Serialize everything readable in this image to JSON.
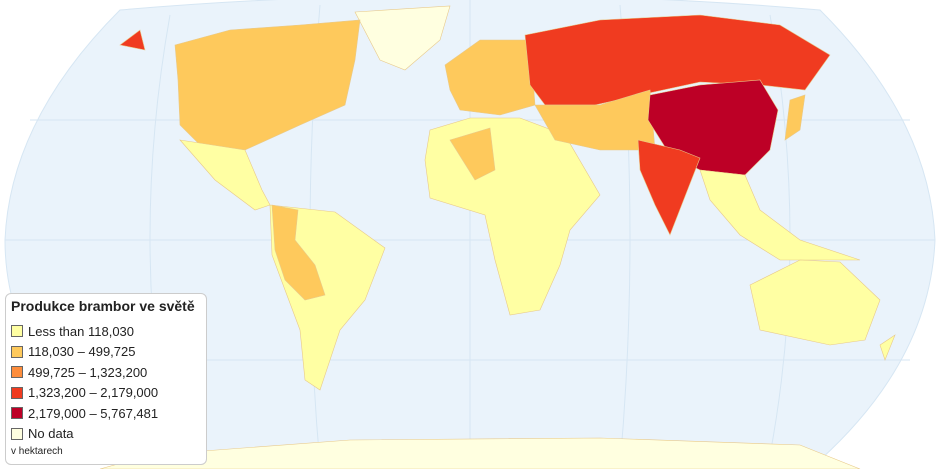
{
  "legend": {
    "title": "Produkce brambor ve světě",
    "items": [
      {
        "label": "Less than 118,030",
        "color": "#FFFFA3"
      },
      {
        "label": "118,030 – 499,725",
        "color": "#FEC95C"
      },
      {
        "label": "499,725 – 1,323,200",
        "color": "#FD8D3C"
      },
      {
        "label": "1,323,200 – 2,179,000",
        "color": "#F03B20"
      },
      {
        "label": "2,179,000 – 5,767,481",
        "color": "#BD0026"
      },
      {
        "label": "No data",
        "color": "#FFFFE0"
      }
    ],
    "unit_note": "v hektarech"
  },
  "colors": {
    "ocean": "#EAF3FB",
    "border": "#E0C080"
  }
}
